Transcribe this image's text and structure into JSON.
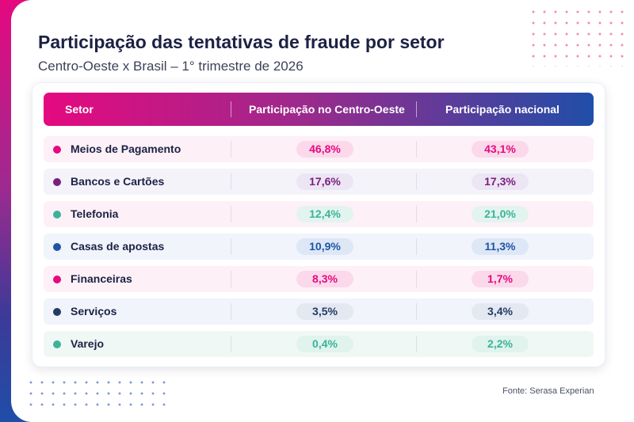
{
  "title": "Participação das tentativas de fraude por setor",
  "subtitle": "Centro-Oeste x Brasil – 1° trimestre de 2026",
  "source": "Fonte: Serasa Experian",
  "colors": {
    "pink": "#e5097f",
    "purple": "#7a1f7e",
    "teal": "#3bb39b",
    "blue": "#1e55a6",
    "navy": "#243a66"
  },
  "chart_data": {
    "type": "table",
    "columns": [
      "Setor",
      "Participação no Centro-Oeste",
      "Participação nacional"
    ],
    "rows": [
      {
        "setor": "Meios de Pagamento",
        "centro_oeste": "46,8%",
        "nacional": "43,1%",
        "color": "#e5097f",
        "row_bg": "#fdf0f7",
        "pill_bg": "#fbd9ea"
      },
      {
        "setor": "Bancos e Cartões",
        "centro_oeste": "17,6%",
        "nacional": "17,3%",
        "color": "#7a1f7e",
        "row_bg": "#f4f3fa",
        "pill_bg": "#ece6f4"
      },
      {
        "setor": "Telefonia",
        "centro_oeste": "12,4%",
        "nacional": "21,0%",
        "color": "#3bb39b",
        "row_bg": "#fdf0f7",
        "pill_bg": "#e3f4ee"
      },
      {
        "setor": "Casas de apostas",
        "centro_oeste": "10,9%",
        "nacional": "11,3%",
        "color": "#1e55a6",
        "row_bg": "#f1f4fb",
        "pill_bg": "#dde7f6"
      },
      {
        "setor": "Financeiras",
        "centro_oeste": "8,3%",
        "nacional": "1,7%",
        "color": "#e5097f",
        "row_bg": "#fdf0f7",
        "pill_bg": "#fbd9ea"
      },
      {
        "setor": "Serviços",
        "centro_oeste": "3,5%",
        "nacional": "3,4%",
        "color": "#243a66",
        "row_bg": "#f1f4fb",
        "pill_bg": "#e4e8f1"
      },
      {
        "setor": "Varejo",
        "centro_oeste": "0,4%",
        "nacional": "2,2%",
        "color": "#3bb39b",
        "row_bg": "#f0f8f5",
        "pill_bg": "#e0f3ec"
      }
    ]
  }
}
